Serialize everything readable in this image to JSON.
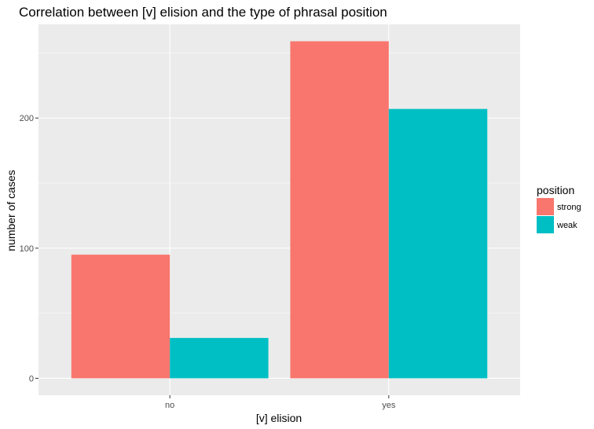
{
  "chart_data": {
    "type": "bar",
    "title": "Correlation between [v] elision and the type of phrasal position",
    "xlabel": "[v] elision",
    "ylabel": "number of cases",
    "categories": [
      "no",
      "yes"
    ],
    "series": [
      {
        "name": "strong",
        "values": [
          95,
          259
        ],
        "color": "#F8766D"
      },
      {
        "name": "weak",
        "values": [
          31,
          207
        ],
        "color": "#00BFC4"
      }
    ],
    "ylim": [
      -13,
      272
    ],
    "yticks": [
      0,
      100,
      200
    ],
    "grid": true,
    "legend": {
      "title": "position",
      "placement": "right"
    },
    "colors": {
      "panel": "#EBEBEB",
      "grid": "#FFFFFF",
      "text": "#000000",
      "tick_text": "#4D4D4D"
    }
  }
}
